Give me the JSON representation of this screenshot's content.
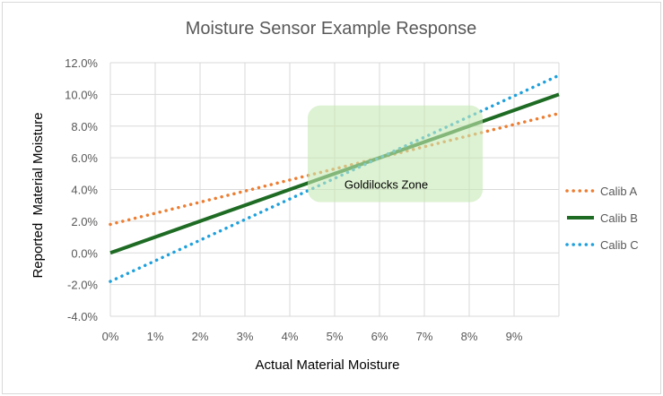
{
  "chart_data": {
    "type": "line",
    "title": "Moisture Sensor Example Response",
    "xlabel": "Actual Material Moisture",
    "ylabel": "Reported  Material Moisture",
    "xlim": [
      0,
      10
    ],
    "ylim": [
      -4,
      12
    ],
    "x_ticks": [
      "0%",
      "1%",
      "2%",
      "3%",
      "4%",
      "5%",
      "6%",
      "7%",
      "8%",
      "9%"
    ],
    "y_ticks": [
      "-4.0%",
      "-2.0%",
      "0.0%",
      "2.0%",
      "4.0%",
      "6.0%",
      "8.0%",
      "10.0%",
      "12.0%"
    ],
    "grid": true,
    "legend_position": "right",
    "series": [
      {
        "name": "Calib A",
        "x": [
          0,
          10
        ],
        "y": [
          1.8,
          8.8
        ],
        "color": "#ed7d31",
        "style": "dotted"
      },
      {
        "name": "Calib B",
        "x": [
          0,
          10
        ],
        "y": [
          0,
          10
        ],
        "color": "#1e6b24",
        "style": "solid"
      },
      {
        "name": "Calib C",
        "x": [
          0,
          10
        ],
        "y": [
          -1.8,
          11.2
        ],
        "color": "#1ea0dc",
        "style": "dotted"
      }
    ],
    "annotation": {
      "text": "Goldilocks Zone",
      "x_range": [
        4.4,
        8.3
      ],
      "y_range": [
        3.2,
        9.3
      ],
      "color": "#c6eab4"
    }
  }
}
